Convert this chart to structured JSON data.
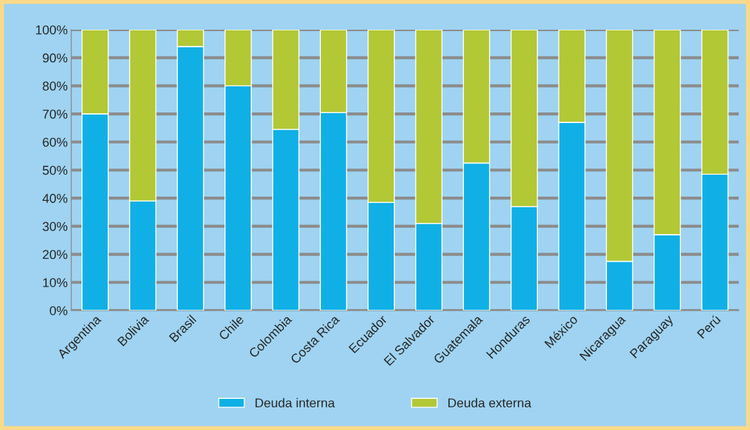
{
  "chart_data": {
    "type": "bar",
    "stacked": true,
    "categories": [
      "Argentina",
      "Bolivia",
      "Brasil",
      "Chile",
      "Colombia",
      "Costa Rica",
      "Ecuador",
      "El Salvador",
      "Guatemala",
      "Honduras",
      "México",
      "Nicaragua",
      "Paraguay",
      "Perú"
    ],
    "series": [
      {
        "name": "Deuda interna",
        "color": "#10b0e6",
        "values": [
          70,
          39,
          94,
          80,
          64.5,
          70.5,
          38.5,
          31,
          52.5,
          37,
          67,
          17.5,
          27,
          48.5
        ]
      },
      {
        "name": "Deuda externa",
        "color": "#b2c835",
        "values": [
          30,
          61,
          6,
          20,
          35.5,
          29.5,
          61.5,
          69,
          47.5,
          63,
          33,
          82.5,
          73,
          51.5
        ]
      }
    ],
    "ylim": [
      0,
      100
    ],
    "yticks": [
      {
        "value": 0,
        "label": "0%"
      },
      {
        "value": 10,
        "label": "10%"
      },
      {
        "value": 20,
        "label": "20%"
      },
      {
        "value": 30,
        "label": "30%"
      },
      {
        "value": 40,
        "label": "40%"
      },
      {
        "value": 50,
        "label": "50%"
      },
      {
        "value": 60,
        "label": "60%"
      },
      {
        "value": 70,
        "label": "70%"
      },
      {
        "value": 80,
        "label": "80%"
      },
      {
        "value": 90,
        "label": "90%"
      },
      {
        "value": 100,
        "label": "100%"
      }
    ],
    "grid": "y",
    "legend": "bottom"
  }
}
